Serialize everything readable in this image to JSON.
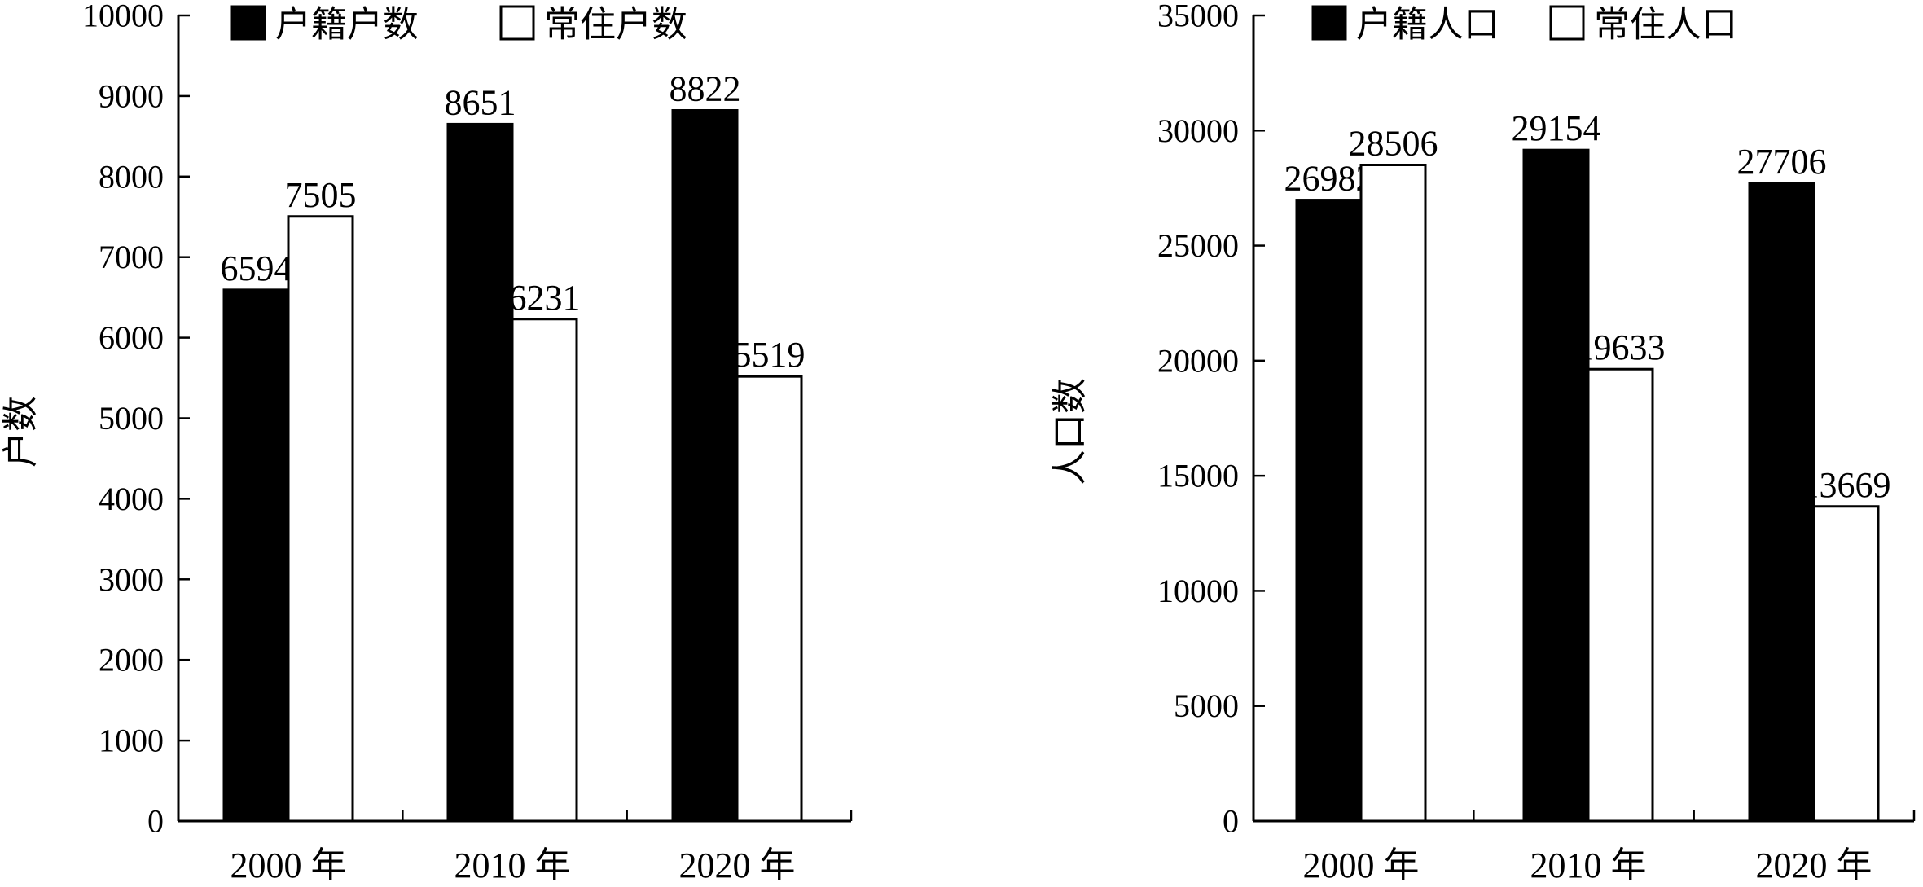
{
  "chart_data": [
    {
      "type": "bar",
      "categories": [
        "2000 年",
        "2010 年",
        "2020 年"
      ],
      "series": [
        {
          "name": "户籍户数",
          "values": [
            6594,
            8651,
            8822
          ],
          "fill": "#000000"
        },
        {
          "name": "常住户数",
          "values": [
            7505,
            6231,
            5519
          ],
          "fill": "#ffffff"
        }
      ],
      "ylabel": "户数",
      "ylim": [
        0,
        10000
      ],
      "yticks": [
        0,
        1000,
        2000,
        3000,
        4000,
        5000,
        6000,
        7000,
        8000,
        9000,
        10000
      ],
      "legend_position": "top",
      "grid": false
    },
    {
      "type": "bar",
      "categories": [
        "2000 年",
        "2010 年",
        "2020 年"
      ],
      "series": [
        {
          "name": "户籍人口",
          "values": [
            26982,
            29154,
            27706
          ],
          "fill": "#000000"
        },
        {
          "name": "常住人口",
          "values": [
            28506,
            19633,
            13669
          ],
          "fill": "#ffffff"
        }
      ],
      "ylabel": "人口数",
      "ylim": [
        0,
        35000
      ],
      "yticks": [
        0,
        5000,
        10000,
        15000,
        20000,
        25000,
        30000,
        35000
      ],
      "legend_position": "top",
      "grid": false
    }
  ]
}
